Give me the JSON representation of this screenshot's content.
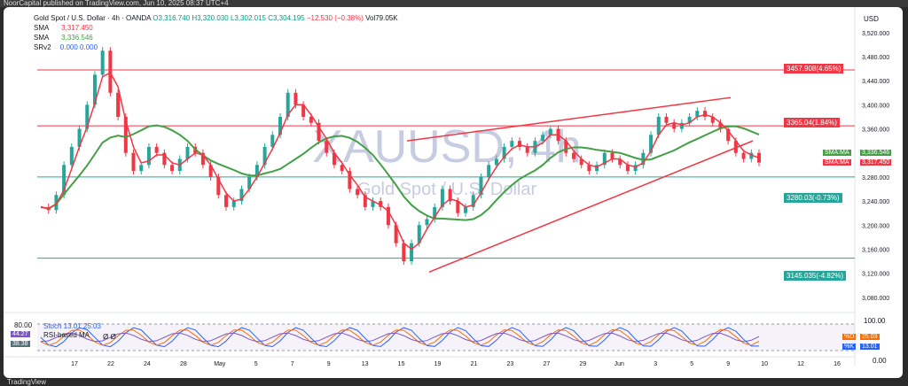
{
  "top_bar": "NoorCapital published on TradingView.com, Jun 10, 2025 08:37 UTC+4",
  "header": {
    "symbol_line": "Gold Spot / U.S. Dollar · 4h · OANDA",
    "o": "O3,316.740",
    "h": "H3,320.030",
    "l": "L3,302.015",
    "c": "C3,304.195",
    "chg": "−12.530 (−0.38%)",
    "vol": "Vol79.05K",
    "sma1_label": "SMA",
    "sma1_value": "3,317.450",
    "sma2_label": "SMA",
    "sma2_value": "3,336.546",
    "srv2_label": "SRv2",
    "srv2_values": "0.000  0.000"
  },
  "currency": "USD",
  "watermark": {
    "ticker": "XAUUSD, 4h",
    "name": "Gold Spot / U.S. Dollar"
  },
  "price_labels": {
    "r1": "3457.908(4.65%)",
    "r2": "3365.04(1.84%)",
    "s1": "3280.03(-0.73%)",
    "s2": "3145.035(-4.82%)",
    "sma_green_tag": "SMA:MA",
    "sma_green_val": "3,336.546",
    "sma_red_tag": "SMA:MA",
    "sma_red_val": "3,317.450"
  },
  "indicator": {
    "stoch_label": "Stoch 13.01 25.03",
    "rsi_label": "RSI-based MA",
    "rsi_value": "44.27",
    "rsi_extra": "Ø  Ø",
    "level_80": "80.00",
    "level_38": "38.38",
    "k_tag": "%D",
    "k_val": "25.03",
    "d_tag": "%K",
    "d_val": "13.01",
    "right_top": "100.00",
    "right_bottom": "0.00"
  },
  "tradingview": "TradingView",
  "chart_data": {
    "type": "line",
    "yaxis_ticks": [
      "3,520.000",
      "3,480.000",
      "3,440.000",
      "3,400.000",
      "3,360.000",
      "3,320.000",
      "3,280.000",
      "3,240.000",
      "3,200.000",
      "3,160.000",
      "3,120.000",
      "3,080.000"
    ],
    "ylim": [
      3065,
      3530
    ],
    "xaxis_ticks": [
      "17",
      "22",
      "24",
      "28",
      "May",
      "5",
      "7",
      "9",
      "13",
      "15",
      "19",
      "21",
      "23",
      "27",
      "29",
      "Jun",
      "3",
      "5",
      "9",
      "10",
      "12",
      "16"
    ],
    "horizontal_levels": [
      3457.908,
      3365.04,
      3280.03,
      3145.035
    ],
    "close_path": [
      3230,
      3225,
      3250,
      3300,
      3330,
      3360,
      3400,
      3450,
      3490,
      3420,
      3380,
      3320,
      3290,
      3300,
      3330,
      3320,
      3300,
      3290,
      3310,
      3330,
      3320,
      3300,
      3280,
      3250,
      3230,
      3240,
      3260,
      3280,
      3300,
      3330,
      3350,
      3380,
      3420,
      3400,
      3380,
      3370,
      3340,
      3320,
      3300,
      3290,
      3260,
      3250,
      3230,
      3240,
      3230,
      3200,
      3170,
      3140,
      3170,
      3200,
      3210,
      3230,
      3260,
      3240,
      3220,
      3230,
      3250,
      3280,
      3300,
      3310,
      3330,
      3340,
      3330,
      3320,
      3340,
      3350,
      3360,
      3340,
      3320,
      3310,
      3300,
      3290,
      3300,
      3320,
      3310,
      3300,
      3290,
      3300,
      3320,
      3350,
      3380,
      3370,
      3360,
      3370,
      3380,
      3390,
      3380,
      3370,
      3360,
      3340,
      3320,
      3310,
      3320,
      3304
    ]
  }
}
